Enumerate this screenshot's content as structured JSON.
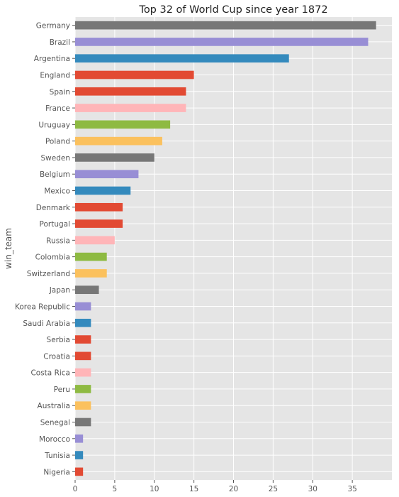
{
  "chart_data": {
    "type": "bar",
    "orientation": "horizontal",
    "title": "Top 32 of World Cup since year 1872",
    "xlabel": "",
    "ylabel": "win_team",
    "xlim": [
      0,
      40
    ],
    "xticks": [
      0,
      5,
      10,
      15,
      20,
      25,
      30,
      35
    ],
    "grid": true,
    "categories": [
      "Germany",
      "Brazil",
      "Argentina",
      "England",
      "Spain",
      "France",
      "Uruguay",
      "Poland",
      "Sweden",
      "Belgium",
      "Mexico",
      "Denmark",
      "Portugal",
      "Russia",
      "Colombia",
      "Switzerland",
      "Japan",
      "Korea Republic",
      "Saudi Arabia",
      "Serbia",
      "Croatia",
      "Costa Rica",
      "Peru",
      "Australia",
      "Senegal",
      "Morocco",
      "Tunisia",
      "Nigeria"
    ],
    "values": [
      38,
      37,
      27,
      15,
      14,
      14,
      12,
      11,
      10,
      8,
      7,
      6,
      6,
      5,
      4,
      4,
      3,
      2,
      2,
      2,
      2,
      2,
      2,
      2,
      2,
      1,
      1,
      1
    ],
    "bar_colors_cycle": [
      "#777777",
      "#988ED5",
      "#348ABD",
      "#E24A33",
      "#E24A33",
      "#FFB5B8",
      "#8EBA42",
      "#FBC15E"
    ]
  }
}
